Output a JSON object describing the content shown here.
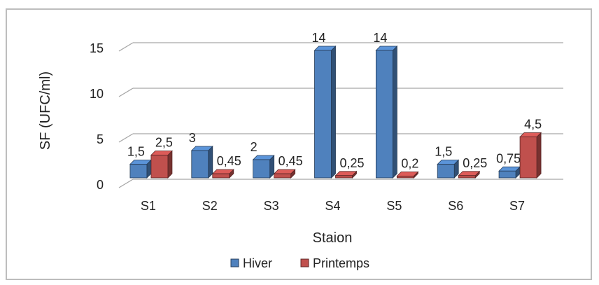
{
  "chart_data": {
    "type": "bar",
    "xlabel": "Staion",
    "ylabel": "SF  (UFC/ml)",
    "ylim": [
      0,
      15
    ],
    "yticks": [
      0,
      5,
      10,
      15
    ],
    "grid": true,
    "legend_position": "bottom",
    "categories": [
      "S1",
      "S2",
      "S3",
      "S4",
      "S5",
      "S6",
      "S7"
    ],
    "series": [
      {
        "name": "Hiver",
        "color": "#4f81bd",
        "values": [
          1.5,
          3,
          2,
          14,
          14,
          1.5,
          0.75
        ],
        "labels": [
          "1,5",
          "3",
          "2",
          "14",
          "14",
          "1,5",
          "0,75"
        ]
      },
      {
        "name": "Printemps",
        "color": "#c0504d",
        "values": [
          2.5,
          0.45,
          0.45,
          0.25,
          0.2,
          0.25,
          4.5
        ],
        "labels": [
          "2,5",
          "0,45",
          "0,45",
          "0,25",
          "0,2",
          "0,25",
          "4,5"
        ]
      }
    ]
  }
}
